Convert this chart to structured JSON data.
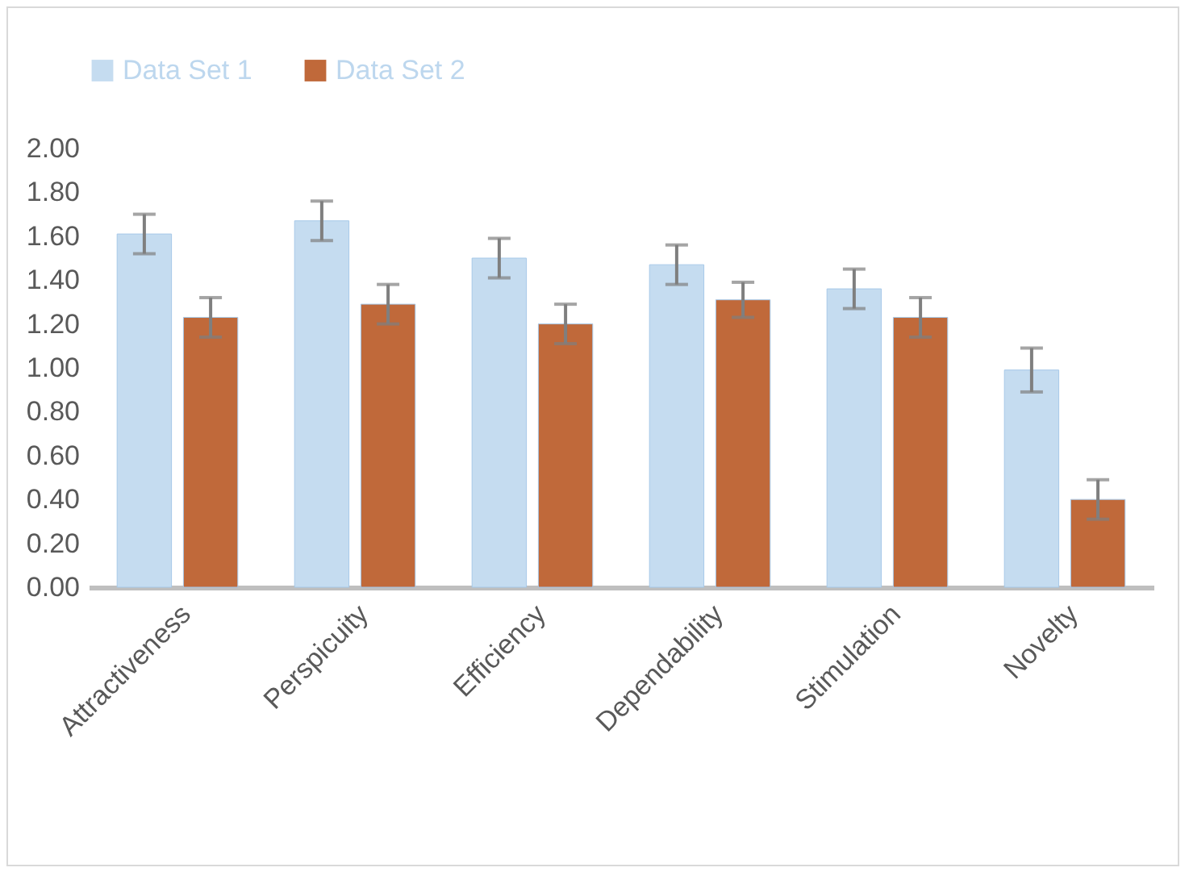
{
  "chart_data": {
    "type": "bar",
    "categories": [
      "Attractiveness",
      "Perspicuity",
      "Efficiency",
      "Dependability",
      "Stimulation",
      "Novelty"
    ],
    "series": [
      {
        "name": "Data Set 1",
        "color": "#c5dcf0",
        "values": [
          1.61,
          1.67,
          1.5,
          1.47,
          1.36,
          0.99
        ],
        "errors": [
          0.09,
          0.09,
          0.09,
          0.09,
          0.09,
          0.1
        ]
      },
      {
        "name": "Data Set 2",
        "color": "#c0693a",
        "values": [
          1.23,
          1.29,
          1.2,
          1.31,
          1.23,
          0.4
        ],
        "errors": [
          0.09,
          0.09,
          0.09,
          0.08,
          0.09,
          0.09
        ]
      }
    ],
    "ylim": [
      0,
      2
    ],
    "yticks": [
      {
        "value": 0,
        "label": "0.00"
      },
      {
        "value": 0.2,
        "label": "0.20"
      },
      {
        "value": 0.4,
        "label": "0.40"
      },
      {
        "value": 0.6,
        "label": "0.60"
      },
      {
        "value": 0.8,
        "label": "0.80"
      },
      {
        "value": 1,
        "label": "1.00"
      },
      {
        "value": 1.2,
        "label": "1.20"
      },
      {
        "value": 1.4,
        "label": "1.40"
      },
      {
        "value": 1.6,
        "label": "1.60"
      },
      {
        "value": 1.8,
        "label": "1.80"
      },
      {
        "value": 2,
        "label": "2.00"
      }
    ],
    "grid": false,
    "legend": "top"
  }
}
